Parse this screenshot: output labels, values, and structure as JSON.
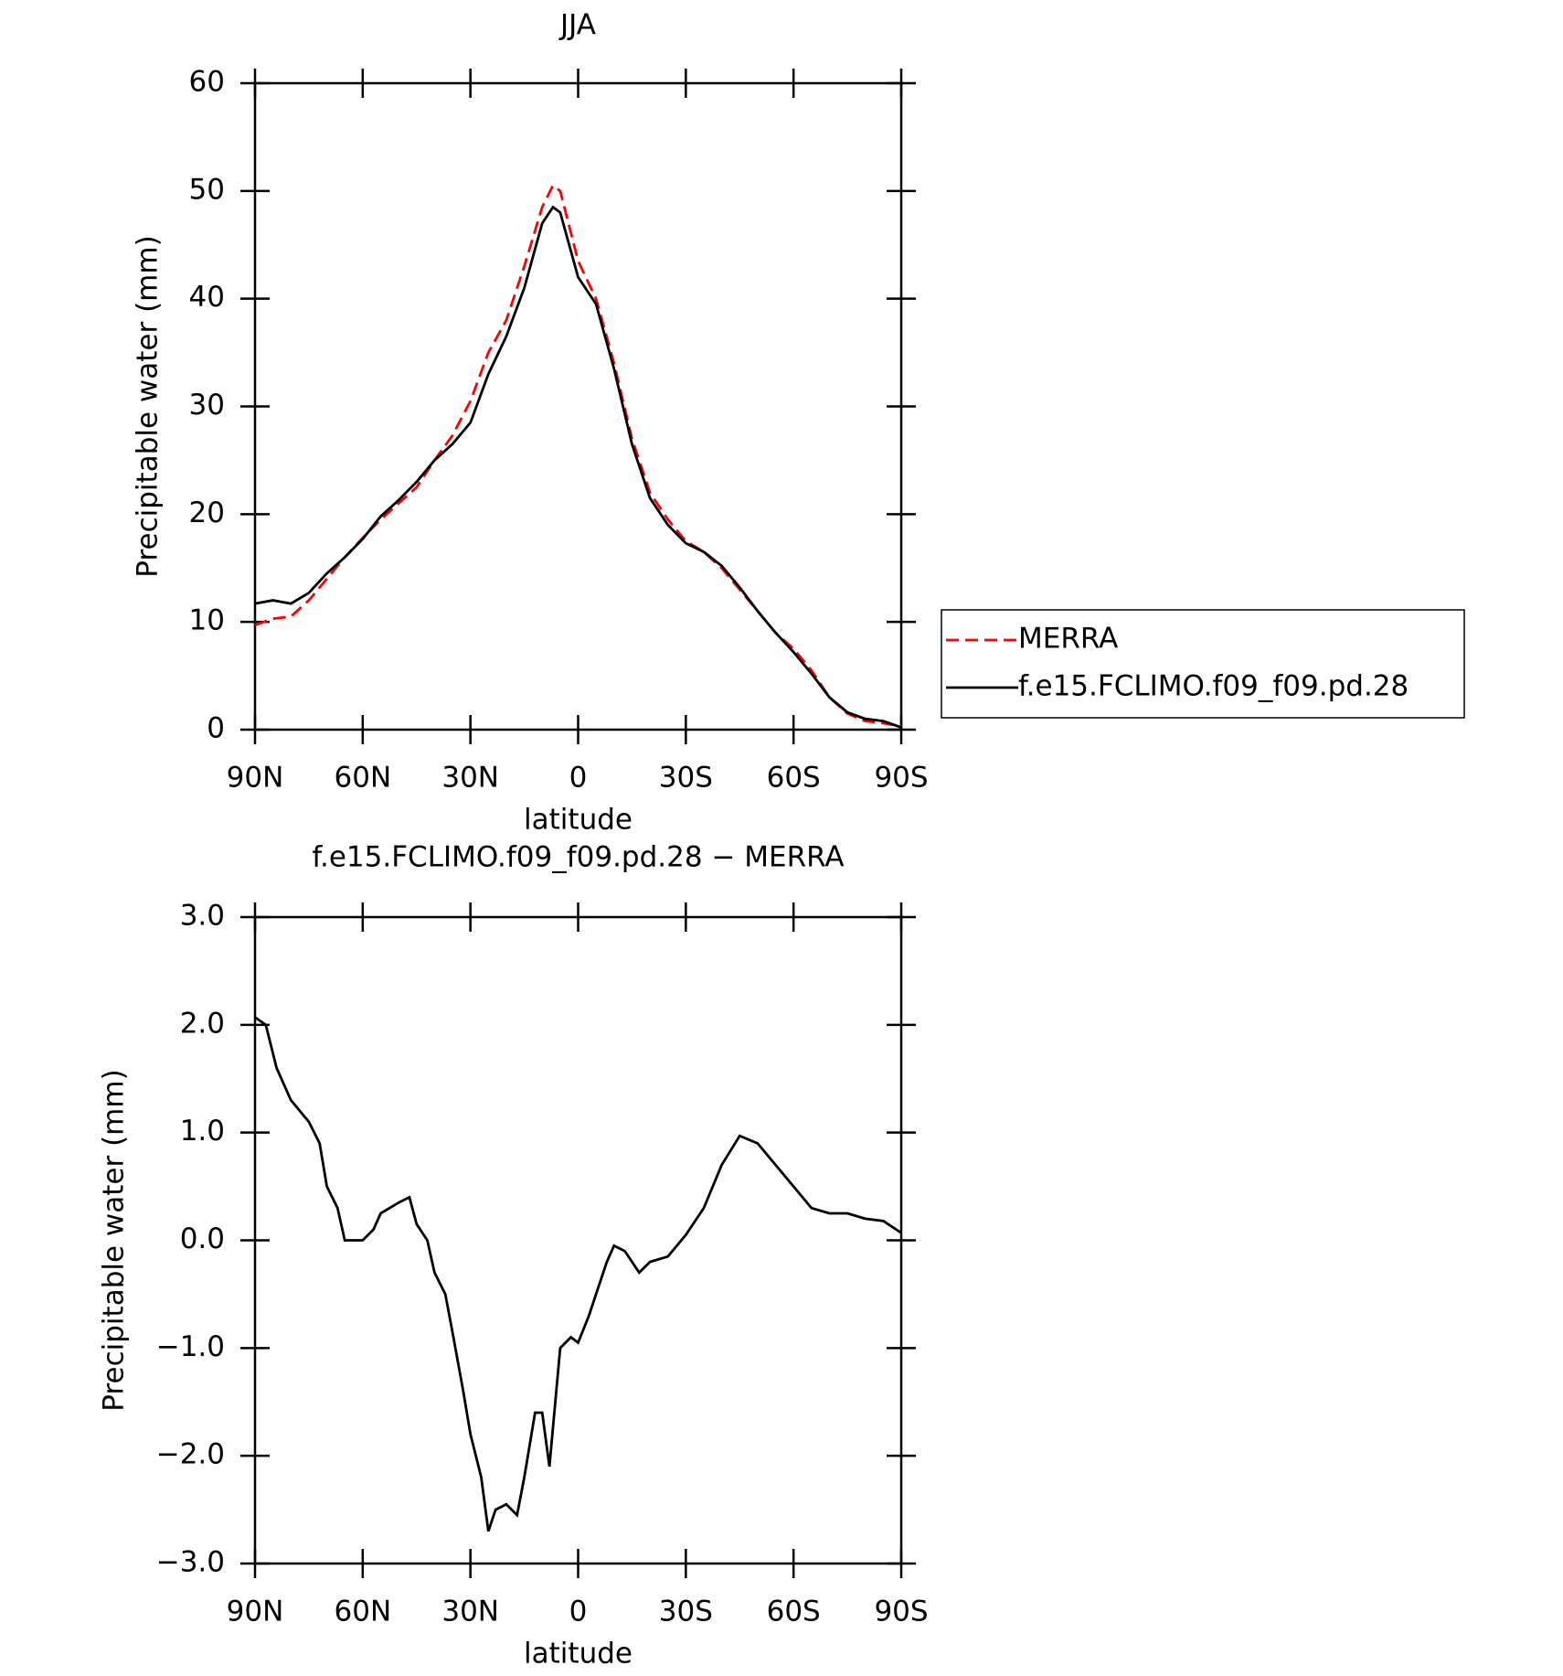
{
  "chart_data": [
    {
      "type": "line",
      "title": "JJA",
      "xlabel": "latitude",
      "ylabel": "Precipitable water (mm)",
      "x": [
        90,
        85,
        80,
        75,
        70,
        65,
        60,
        55,
        50,
        45,
        40,
        35,
        30,
        25,
        20,
        15,
        10,
        7,
        5,
        0,
        -5,
        -10,
        -15,
        -20,
        -25,
        -30,
        -35,
        -40,
        -45,
        -50,
        -55,
        -60,
        -65,
        -70,
        -75,
        -80,
        -85,
        -90
      ],
      "xlim": [
        90,
        -90
      ],
      "xticks": [
        {
          "value": 90,
          "label": "90N"
        },
        {
          "value": 60,
          "label": "60N"
        },
        {
          "value": 30,
          "label": "30N"
        },
        0,
        {
          "value": -30,
          "label": "30S"
        },
        {
          "value": -60,
          "label": "60S"
        },
        {
          "value": -90,
          "label": "90S"
        }
      ],
      "ylim": [
        0,
        60
      ],
      "yticks": [
        0,
        10,
        20,
        30,
        40,
        50,
        60
      ],
      "legend": "outside-right",
      "series": [
        {
          "name": "MERRA",
          "color": "#ff0000",
          "line_style": "dashed",
          "values": [
            9.7,
            10.3,
            10.5,
            12,
            14,
            16,
            17.8,
            19.5,
            21,
            22.5,
            25,
            27.3,
            30.5,
            35,
            38,
            43,
            48.5,
            50.5,
            50,
            43.5,
            40,
            34,
            27,
            22,
            19.5,
            17.5,
            16.5,
            15,
            13,
            11,
            9,
            7.5,
            5.5,
            3,
            1.5,
            0.8,
            0.6,
            0.3
          ]
        },
        {
          "name": "f.e15.FCLIMO.f09_f09.pd.28",
          "color": "#000000",
          "line_style": "solid",
          "values": [
            11.7,
            12,
            11.7,
            12.7,
            14.5,
            16,
            17.7,
            19.8,
            21.3,
            23,
            25,
            26.5,
            28.5,
            33,
            36.5,
            41,
            47,
            48.5,
            48,
            42,
            39.5,
            33.5,
            26.5,
            21.5,
            19,
            17.3,
            16.5,
            15.2,
            13.2,
            11,
            9,
            7.2,
            5.2,
            3,
            1.6,
            1,
            0.8,
            0.2
          ]
        }
      ]
    },
    {
      "type": "line",
      "title": "f.e15.FCLIMO.f09_f09.pd.28 − MERRA",
      "xlabel": "latitude",
      "ylabel": "Precipitable water (mm)",
      "x": [
        90,
        87,
        84,
        80,
        75,
        72,
        70,
        67,
        65,
        62,
        60,
        57,
        55,
        50,
        47,
        45,
        42,
        40,
        37,
        35,
        32,
        30,
        27,
        25,
        23,
        20,
        17,
        15,
        12,
        10,
        8,
        5,
        2,
        0,
        -3,
        -5,
        -8,
        -10,
        -13,
        -17,
        -20,
        -25,
        -30,
        -35,
        -40,
        -45,
        -50,
        -55,
        -60,
        -65,
        -70,
        -75,
        -80,
        -85,
        -90
      ],
      "xlim": [
        90,
        -90
      ],
      "xticks": [
        {
          "value": 90,
          "label": "90N"
        },
        {
          "value": 60,
          "label": "60N"
        },
        {
          "value": 30,
          "label": "30N"
        },
        0,
        {
          "value": -30,
          "label": "30S"
        },
        {
          "value": -60,
          "label": "60S"
        },
        {
          "value": -90,
          "label": "90S"
        }
      ],
      "ylim": [
        -3,
        3
      ],
      "yticks": [
        {
          "value": -3,
          "label": "−3.0"
        },
        {
          "value": -2,
          "label": "−2.0"
        },
        {
          "value": -1,
          "label": "−1.0"
        },
        {
          "value": 0,
          "label": "0.0"
        },
        {
          "value": 1,
          "label": "1.0"
        },
        {
          "value": 2,
          "label": "2.0"
        },
        {
          "value": 3,
          "label": "3.0"
        }
      ],
      "series": [
        {
          "color": "#000000",
          "line_style": "solid",
          "values": [
            2.07,
            2.0,
            1.6,
            1.3,
            1.1,
            0.9,
            0.5,
            0.3,
            0.0,
            0.0,
            0.0,
            0.1,
            0.25,
            0.35,
            0.4,
            0.15,
            0.0,
            -0.3,
            -0.5,
            -0.85,
            -1.4,
            -1.8,
            -2.2,
            -2.7,
            -2.5,
            -2.45,
            -2.55,
            -2.2,
            -1.6,
            -1.6,
            -2.1,
            -1.0,
            -0.9,
            -0.95,
            -0.7,
            -0.5,
            -0.2,
            -0.05,
            -0.1,
            -0.3,
            -0.2,
            -0.15,
            0.05,
            0.3,
            0.7,
            0.97,
            0.9,
            0.7,
            0.5,
            0.3,
            0.25,
            0.25,
            0.2,
            0.18,
            0.07
          ]
        }
      ]
    }
  ]
}
